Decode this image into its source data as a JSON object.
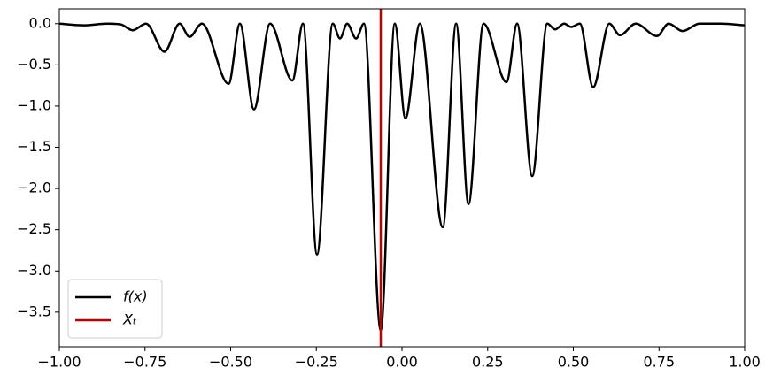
{
  "chart_data": {
    "type": "line",
    "x": [
      -1,
      -0.93,
      -0.86,
      -0.82,
      -0.786,
      -0.747,
      -0.693,
      -0.649,
      -0.62,
      -0.584,
      -0.506,
      -0.473,
      -0.432,
      -0.385,
      -0.32,
      -0.289,
      -0.248,
      -0.202,
      -0.181,
      -0.16,
      -0.134,
      -0.111,
      -0.062,
      -0.021,
      0.01,
      0.052,
      0.119,
      0.158,
      0.194,
      0.238,
      0.305,
      0.336,
      0.38,
      0.424,
      0.447,
      0.473,
      0.494,
      0.519,
      0.558,
      0.605,
      0.636,
      0.682,
      0.744,
      0.778,
      0.819,
      0.868,
      0.93,
      1
    ],
    "series": [
      {
        "name": "f(x)",
        "color": "#000000",
        "values": [
          0,
          -0.02,
          0,
          -0.01,
          -0.08,
          0,
          -0.34,
          0,
          -0.16,
          0,
          -0.73,
          0,
          -1.04,
          0,
          -0.69,
          0,
          -2.8,
          0,
          -0.18,
          0,
          -0.18,
          0,
          -3.72,
          0,
          -1.15,
          0,
          -2.47,
          0,
          -2.19,
          0,
          -0.71,
          0,
          -1.85,
          0,
          -0.07,
          0,
          -0.04,
          0,
          -0.77,
          0,
          -0.14,
          0,
          -0.15,
          0,
          -0.09,
          0,
          0,
          -0.02
        ]
      }
    ],
    "vlines": [
      {
        "name": "Xₜ",
        "color": "#c00000",
        "x": -0.062
      }
    ],
    "xlim": [
      -1,
      1
    ],
    "ylim": [
      -3.92,
      0.18
    ],
    "xticks": [
      {
        "value": -1,
        "label": "−1.00"
      },
      {
        "value": -0.75,
        "label": "−0.75"
      },
      {
        "value": -0.5,
        "label": "−0.50"
      },
      {
        "value": -0.25,
        "label": "−0.25"
      },
      {
        "value": 0,
        "label": "0.00"
      },
      {
        "value": 0.25,
        "label": "0.25"
      },
      {
        "value": 0.5,
        "label": "0.50"
      },
      {
        "value": 0.75,
        "label": "0.75"
      },
      {
        "value": 1,
        "label": "1.00"
      }
    ],
    "yticks": [
      {
        "value": 0,
        "label": "0.0"
      },
      {
        "value": -0.5,
        "label": "−0.5"
      },
      {
        "value": -1,
        "label": "−1.0"
      },
      {
        "value": -1.5,
        "label": "−1.5"
      },
      {
        "value": -2,
        "label": "−2.0"
      },
      {
        "value": -2.5,
        "label": "−2.5"
      },
      {
        "value": -3,
        "label": "−3.0"
      },
      {
        "value": -3.5,
        "label": "−3.5"
      }
    ],
    "legend": "lower left"
  }
}
